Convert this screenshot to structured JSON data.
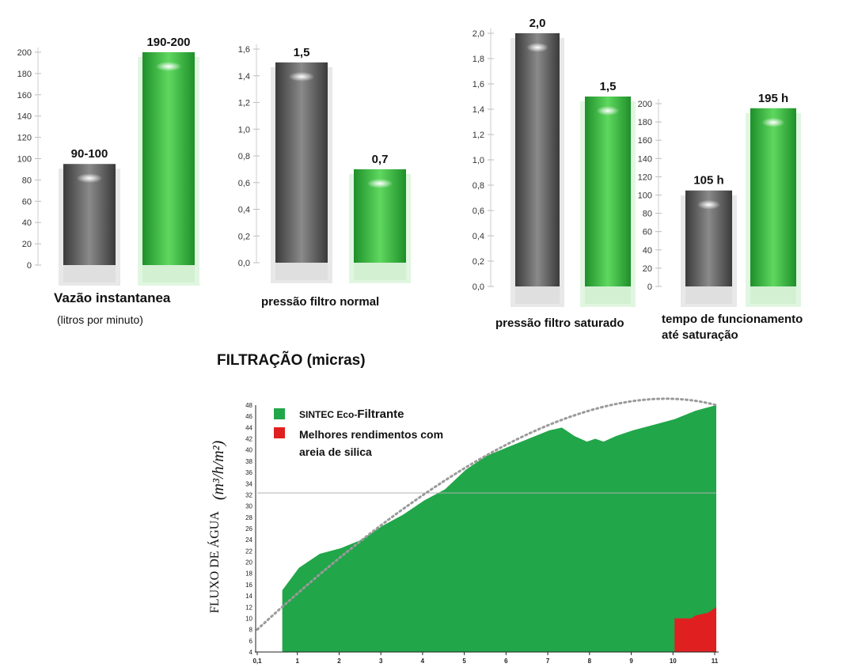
{
  "colors": {
    "gray_bar": "#5a5a5a",
    "green_bar": "#2fae3c",
    "area_green": "#22a64a",
    "area_red": "#e02020",
    "trend_dots": "#9a9a9a"
  },
  "chart_data": [
    {
      "type": "bar",
      "title": "Vazão instantanea",
      "subtitle": "(litros por minuto)",
      "categories": [
        "",
        ""
      ],
      "values": [
        95,
        200
      ],
      "data_labels": [
        "90-100",
        "190-200"
      ],
      "ylim": [
        0,
        200
      ],
      "yticks": [
        "0",
        "20",
        "40",
        "60",
        "80",
        "100",
        "120",
        "140",
        "160",
        "180",
        "200"
      ]
    },
    {
      "type": "bar",
      "title": "pressão filtro normal",
      "categories": [
        "",
        ""
      ],
      "values": [
        1.5,
        0.7
      ],
      "data_labels": [
        "1,5",
        "0,7"
      ],
      "ylim": [
        0,
        1.6
      ],
      "yticks": [
        "0,0",
        "0,2",
        "0,4",
        "0,6",
        "0,8",
        "1,0",
        "1,2",
        "1,4",
        "1,6"
      ]
    },
    {
      "type": "bar",
      "title": "pressão filtro saturado",
      "categories": [
        "",
        ""
      ],
      "values": [
        2.0,
        1.5
      ],
      "data_labels": [
        "2,0",
        "1,5"
      ],
      "ylim": [
        0,
        2.0
      ],
      "yticks": [
        "0,0",
        "0,2",
        "0,4",
        "0,6",
        "0,8",
        "1,0",
        "1,2",
        "1,4",
        "1,6",
        "1,8",
        "2,0"
      ]
    },
    {
      "type": "bar",
      "title": "tempo de funcionamento",
      "title_line2": "até saturação",
      "categories": [
        "",
        ""
      ],
      "values": [
        105,
        195
      ],
      "data_labels": [
        "105 h",
        "195 h"
      ],
      "ylim": [
        0,
        200
      ],
      "yticks": [
        "0",
        "20",
        "40",
        "60",
        "80",
        "100",
        "120",
        "140",
        "160",
        "180",
        "200"
      ]
    },
    {
      "type": "area",
      "title": "FILTRAÇÃO (micras)",
      "ylabel": "FLUXO DE ÁGUA",
      "ylabel_unit": "(m³/h/m²)",
      "xticks": [
        "0,1",
        "1",
        "2",
        "3",
        "4",
        "5",
        "6",
        "7",
        "8",
        "9",
        "10",
        "11"
      ],
      "yticks": [
        "4",
        "6",
        "8",
        "10",
        "12",
        "14",
        "16",
        "18",
        "20",
        "22",
        "24",
        "26",
        "28",
        "30",
        "32",
        "34",
        "36",
        "38",
        "40",
        "42",
        "44",
        "46",
        "48"
      ],
      "xlim": [
        0,
        11
      ],
      "ylim": [
        4,
        48
      ],
      "legend": [
        {
          "label": "SINTEC Eco-",
          "label_bold": "Filtrante",
          "color": "#22a64a"
        },
        {
          "label": "Melhores rendimentos com areia de silica",
          "color": "#e02020"
        }
      ],
      "series": [
        {
          "name": "SINTEC Eco-Filtrante",
          "x": [
            0.6,
            1,
            1.5,
            2,
            2.5,
            3,
            3.5,
            4,
            4.5,
            5,
            5.5,
            6,
            6.5,
            7,
            7.3,
            7.6,
            7.9,
            8.1,
            8.3,
            8.6,
            9,
            9.5,
            10,
            10.5,
            11
          ],
          "y": [
            15,
            19,
            21.5,
            22.5,
            24,
            26.5,
            28.5,
            31,
            33,
            36.5,
            39,
            40.5,
            42,
            43.5,
            44,
            42.5,
            41.5,
            42,
            41.5,
            42.5,
            43.5,
            44.5,
            45.5,
            47,
            48
          ]
        },
        {
          "name": "Melhores rendimentos com areia de silica",
          "x": [
            10,
            10.4,
            10.5,
            10.8,
            11
          ],
          "y": [
            10,
            10,
            10.5,
            11,
            12
          ]
        }
      ]
    }
  ]
}
